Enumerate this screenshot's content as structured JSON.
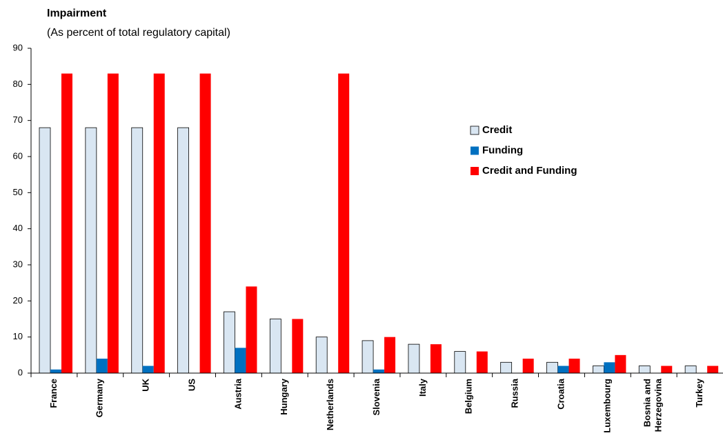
{
  "chart_data": {
    "type": "bar",
    "title": "Impairment",
    "subtitle": "(As percent of total regulatory capital)",
    "categories": [
      "France",
      "Germany",
      "UK",
      "US",
      "Austria",
      "Hungary",
      "Netherlands",
      "Slovenia",
      "Italy",
      "Belgium",
      "Russia",
      "Croatia",
      "Luxembourg",
      "Bosnia and\nHerzegovina",
      "Turkey"
    ],
    "series": [
      {
        "name": "Credit",
        "color": "#d9e6f2",
        "values": [
          68,
          68,
          68,
          68,
          17,
          15,
          10,
          9,
          8,
          6,
          3,
          3,
          2,
          2,
          2
        ]
      },
      {
        "name": "Funding",
        "color": "#0070c0",
        "values": [
          1,
          4,
          2,
          0,
          7,
          0,
          0,
          1,
          0,
          0,
          0,
          2,
          3,
          0,
          0
        ]
      },
      {
        "name": "Credit and Funding",
        "color": "#ff0000",
        "values": [
          83,
          83,
          83,
          83,
          24,
          15,
          83,
          10,
          8,
          6,
          4,
          4,
          5,
          2,
          2
        ]
      }
    ],
    "ylim": [
      0,
      90
    ],
    "yticks": [
      0,
      10,
      20,
      30,
      40,
      50,
      60,
      70,
      80,
      90
    ],
    "legend": "right"
  }
}
